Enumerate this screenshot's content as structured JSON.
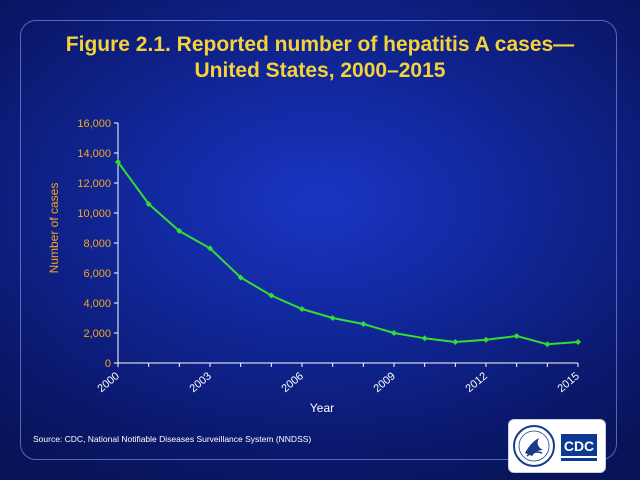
{
  "title_line1": "Figure 2.1. Reported number of hepatitis A cases—",
  "title_line2": "United States, 2000–2015",
  "source": "Source: CDC, National  Notifiable Diseases Surveillance System (NNDSS)",
  "logo_text": "CDC",
  "colors": {
    "title": "#f5d23a",
    "axis_label": "#f5a623",
    "line": "#33dd33",
    "axis": "#ffffff"
  },
  "chart_data": {
    "type": "line",
    "title": "Figure 2.1. Reported number of hepatitis A cases—United States, 2000–2015",
    "xlabel": "Year",
    "ylabel": "Number of cases",
    "x": [
      2000,
      2001,
      2002,
      2003,
      2004,
      2005,
      2006,
      2007,
      2008,
      2009,
      2010,
      2011,
      2012,
      2013,
      2014,
      2015
    ],
    "x_tick_labels": [
      "2000",
      "2003",
      "2006",
      "2009",
      "2012",
      "2015"
    ],
    "y_tick_labels": [
      "0",
      "2,000",
      "4,000",
      "6,000",
      "8,000",
      "10,000",
      "12,000",
      "14,000",
      "16,000"
    ],
    "xlim": [
      2000,
      2015
    ],
    "ylim": [
      0,
      16000
    ],
    "grid": false,
    "legend": "none",
    "series": [
      {
        "values": [
          13400,
          10600,
          8800,
          7650,
          5700,
          4500,
          3600,
          3000,
          2600,
          2000,
          1650,
          1400,
          1550,
          1800,
          1250,
          1400
        ]
      }
    ]
  }
}
